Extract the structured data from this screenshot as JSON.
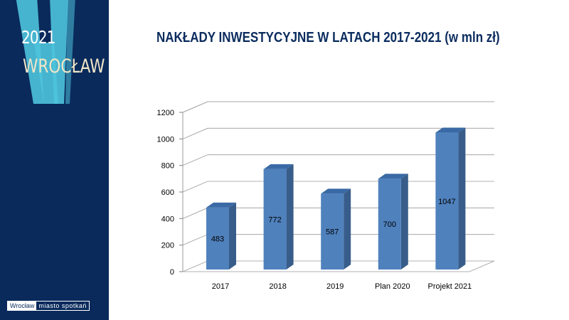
{
  "sidebar": {
    "year": "2021",
    "city": "WROCŁAW",
    "tagline_city": "Wrocław",
    "tagline_slogan": "miasto spotkań",
    "logo_letter": "W"
  },
  "colors": {
    "sidebar_bg": "#0a2a5c",
    "logo_cyan": "#4ec3dc",
    "bar_front": "#4f81bd",
    "bar_side": "#385d8a",
    "bar_top": "#3a6aa5",
    "title": "#0b2c5e"
  },
  "chart_data": {
    "type": "bar",
    "title": "NAKŁADY INWESTYCYJNE W LATACH 2017-2021 (w mln zł)",
    "categories": [
      "2017",
      "2018",
      "2019",
      "Plan 2020",
      "Projekt 2021"
    ],
    "values": [
      483,
      772,
      587,
      700,
      1047
    ],
    "data_labels": [
      "483",
      "772",
      "587",
      "700",
      "1047"
    ],
    "xlabel": "",
    "ylabel": "",
    "ylim": [
      0,
      1200
    ],
    "yticks": [
      0,
      200,
      400,
      600,
      800,
      1000,
      1200
    ],
    "style": "3d-column",
    "grid": true,
    "legend": "none"
  }
}
